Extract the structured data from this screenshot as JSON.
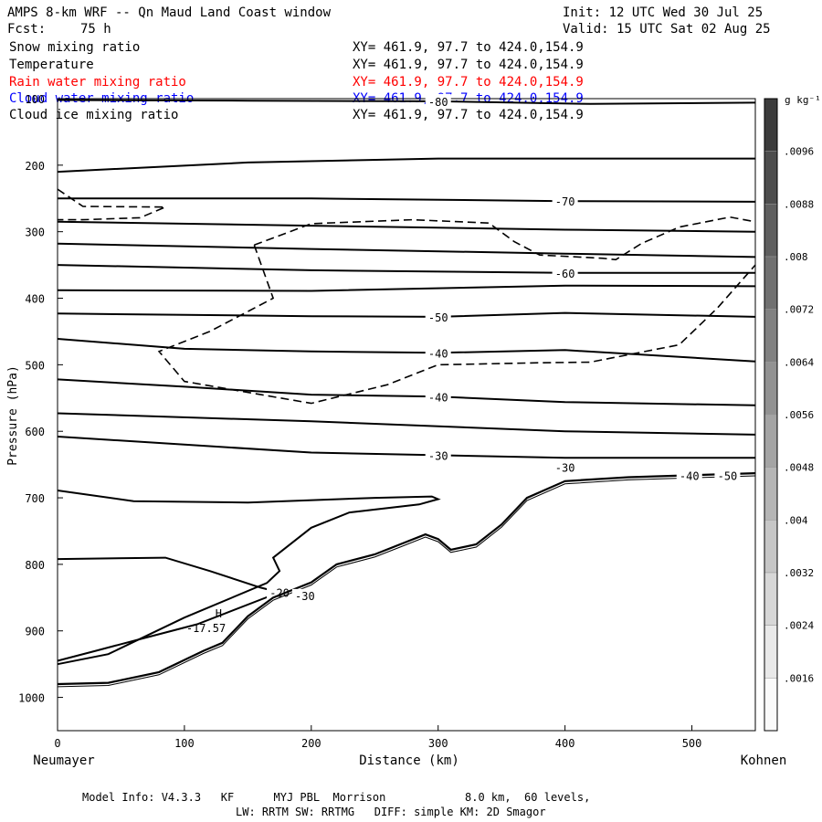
{
  "header": {
    "title": "AMPS 8-km WRF -- Qn Maud Land Coast window",
    "fcst_label": "Fcst:",
    "fcst_value": "75 h",
    "init": "Init: 12 UTC Wed 30 Jul 25",
    "valid": "Valid: 15 UTC Sat 02 Aug 25"
  },
  "fields": [
    {
      "name": "Snow mixing ratio",
      "xy": "XY= 461.9, 97.7 to 424.0,154.9",
      "color": "#000000"
    },
    {
      "name": "Temperature",
      "xy": "XY= 461.9, 97.7 to 424.0,154.9",
      "color": "#000000"
    },
    {
      "name": "Rain water mixing ratio",
      "xy": "XY= 461.9, 97.7 to 424.0,154.9",
      "color": "#ff0000"
    },
    {
      "name": "Cloud water mixing ratio",
      "xy": "XY= 461.9, 97.7 to 424.0,154.9",
      "color": "#0000ff"
    },
    {
      "name": "Cloud ice mixing ratio",
      "xy": "XY= 461.9, 97.7 to 424.0,154.9",
      "color": "#000000"
    }
  ],
  "colorbar": {
    "unit": "g kg⁻¹",
    "ticks": [
      ".0096",
      ".0088",
      ".008",
      ".0072",
      ".0064",
      ".0056",
      ".0048",
      ".004",
      ".0032",
      ".0024",
      ".0016"
    ]
  },
  "footer": {
    "line1": "Model Info: V4.3.3   KF      MYJ PBL  Morrison            8.0 km,  60 levels,",
    "line2": "LW: RRTM SW: RRTMG   DIFF: simple KM: 2D Smagor"
  },
  "chart_data": {
    "type": "line",
    "title": "AMPS 8-km WRF -- Qn Maud Land Coast window",
    "xlabel": "Distance (km)",
    "ylabel": "Pressure (hPa)",
    "xlim": [
      0,
      550
    ],
    "ylim": [
      1050,
      100
    ],
    "x_ticks": [
      0,
      100,
      200,
      300,
      400,
      500
    ],
    "y_ticks": [
      100,
      200,
      300,
      400,
      500,
      600,
      700,
      800,
      900,
      1000
    ],
    "x_endpoints": {
      "left": "Neumayer",
      "right": "Kohnen"
    },
    "grid": false,
    "temperature_isotherms": [
      {
        "label": "-80",
        "points": [
          [
            0,
            102
          ],
          [
            150,
            103
          ],
          [
            300,
            104
          ],
          [
            420,
            108
          ],
          [
            550,
            106
          ]
        ]
      },
      {
        "label": "",
        "points": [
          [
            0,
            210
          ],
          [
            150,
            196
          ],
          [
            300,
            190
          ],
          [
            550,
            190
          ]
        ]
      },
      {
        "label": "-70",
        "points": [
          [
            0,
            250
          ],
          [
            200,
            250
          ],
          [
            400,
            254
          ],
          [
            550,
            255
          ]
        ]
      },
      {
        "label": "",
        "points": [
          [
            0,
            285
          ],
          [
            200,
            291
          ],
          [
            400,
            297
          ],
          [
            550,
            300
          ]
        ]
      },
      {
        "label": "",
        "points": [
          [
            0,
            318
          ],
          [
            200,
            326
          ],
          [
            400,
            333
          ],
          [
            550,
            338
          ]
        ]
      },
      {
        "label": "-60",
        "points": [
          [
            0,
            350
          ],
          [
            200,
            358
          ],
          [
            400,
            362
          ],
          [
            550,
            362
          ]
        ]
      },
      {
        "label": "",
        "points": [
          [
            0,
            388
          ],
          [
            200,
            389
          ],
          [
            400,
            381
          ],
          [
            550,
            382
          ]
        ]
      },
      {
        "label": "-50",
        "points": [
          [
            0,
            423
          ],
          [
            200,
            427
          ],
          [
            300,
            428
          ],
          [
            400,
            422
          ],
          [
            550,
            428
          ]
        ]
      },
      {
        "label": "-40",
        "points": [
          [
            0,
            461
          ],
          [
            100,
            476
          ],
          [
            200,
            480
          ],
          [
            300,
            482
          ],
          [
            400,
            478
          ],
          [
            550,
            495
          ]
        ]
      },
      {
        "label": "-40",
        "points": [
          [
            0,
            522
          ],
          [
            100,
            533
          ],
          [
            200,
            545
          ],
          [
            300,
            548
          ],
          [
            400,
            556
          ],
          [
            550,
            561
          ]
        ]
      },
      {
        "label": "",
        "points": [
          [
            0,
            573
          ],
          [
            200,
            585
          ],
          [
            400,
            600
          ],
          [
            550,
            605
          ]
        ]
      },
      {
        "label": "-30",
        "points": [
          [
            0,
            608
          ],
          [
            100,
            620
          ],
          [
            200,
            632
          ],
          [
            300,
            636
          ],
          [
            400,
            640
          ],
          [
            550,
            640
          ]
        ]
      },
      {
        "label": "",
        "points": [
          [
            0,
            689
          ],
          [
            60,
            705
          ],
          [
            150,
            707
          ],
          [
            250,
            700
          ],
          [
            295,
            698
          ],
          [
            300,
            702
          ],
          [
            285,
            710
          ],
          [
            230,
            722
          ],
          [
            200,
            745
          ],
          [
            170,
            790
          ],
          [
            175,
            810
          ],
          [
            165,
            828
          ],
          [
            100,
            880
          ],
          [
            40,
            935
          ],
          [
            0,
            950
          ]
        ]
      },
      {
        "label": "-20",
        "points": [
          [
            0,
            792
          ],
          [
            85,
            790
          ],
          [
            120,
            810
          ],
          [
            160,
            835
          ],
          [
            175,
            842
          ],
          [
            110,
            890
          ],
          [
            70,
            910
          ],
          [
            30,
            930
          ],
          [
            0,
            945
          ]
        ]
      }
    ],
    "cloud_ice_dashed": [
      {
        "points": [
          [
            0,
            236
          ],
          [
            20,
            262
          ],
          [
            85,
            263
          ],
          [
            65,
            279
          ],
          [
            20,
            282
          ],
          [
            0,
            282
          ]
        ]
      },
      {
        "points": [
          [
            155,
            320
          ],
          [
            200,
            288
          ],
          [
            280,
            282
          ],
          [
            340,
            287
          ],
          [
            360,
            315
          ],
          [
            380,
            335
          ],
          [
            430,
            340
          ],
          [
            440,
            342
          ],
          [
            460,
            318
          ],
          [
            490,
            293
          ],
          [
            530,
            278
          ],
          [
            550,
            285
          ]
        ]
      },
      {
        "points": [
          [
            155,
            320
          ],
          [
            170,
            400
          ],
          [
            120,
            450
          ],
          [
            80,
            480
          ],
          [
            100,
            525
          ],
          [
            200,
            558
          ],
          [
            260,
            530
          ],
          [
            300,
            500
          ],
          [
            380,
            497
          ],
          [
            420,
            496
          ],
          [
            490,
            470
          ],
          [
            520,
            415
          ],
          [
            550,
            350
          ]
        ]
      }
    ],
    "terrain": {
      "label": "H",
      "annotation": "-17.57",
      "points": [
        [
          0,
          980
        ],
        [
          40,
          978
        ],
        [
          80,
          962
        ],
        [
          115,
          930
        ],
        [
          130,
          918
        ],
        [
          150,
          878
        ],
        [
          170,
          850
        ],
        [
          200,
          827
        ],
        [
          220,
          800
        ],
        [
          250,
          785
        ],
        [
          270,
          770
        ],
        [
          290,
          755
        ],
        [
          300,
          762
        ],
        [
          310,
          778
        ],
        [
          330,
          770
        ],
        [
          350,
          740
        ],
        [
          370,
          700
        ],
        [
          400,
          675
        ],
        [
          450,
          669
        ],
        [
          550,
          663
        ]
      ]
    },
    "point_labels": [
      {
        "text": "-30",
        "x": 195,
        "p": 848
      },
      {
        "text": "-30",
        "x": 400,
        "p": 655
      },
      {
        "text": "-40",
        "x": 498,
        "p": 668
      },
      {
        "text": "-50",
        "x": 528,
        "p": 668
      }
    ],
    "colorbar_values": [
      0.0016,
      0.0024,
      0.0032,
      0.004,
      0.0048,
      0.0056,
      0.0064,
      0.0072,
      0.008,
      0.0088,
      0.0096
    ]
  }
}
